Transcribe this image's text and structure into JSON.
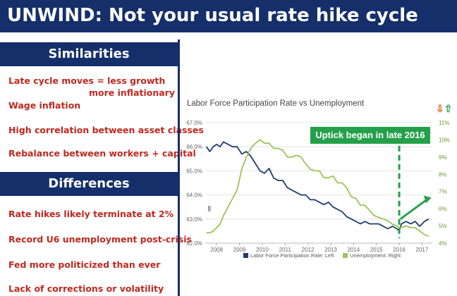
{
  "slide": {
    "title": "UNWIND: Not your usual rate hike cycle",
    "similarities": {
      "heading": "Similarities",
      "items": [
        "Late cycle moves = less growth",
        "more inflationary",
        "Wage inflation",
        "High correlation between asset classes",
        "Rebalance between workers + capital"
      ]
    },
    "differences": {
      "heading": "Differences",
      "items": [
        "Rate hikes likely terminate at 2%",
        "Record U6 unemployment post-crisis",
        "Fed more politicized than ever",
        "Lack of corrections or volatility"
      ]
    }
  },
  "colors": {
    "navy": "#152f6b",
    "red_text": "#c0281e",
    "participation_line": "#1f3d6d",
    "unemployment_line": "#9cc45a",
    "callout_green": "#24a04a",
    "arrow_green": "#2e9e4f",
    "arrow_orange": "#e0621c"
  },
  "chart_data": {
    "type": "line",
    "title": "Labor Force Participation Rate vs Unemployment",
    "annotation": "Uptick began in late 2016",
    "x_ticks": [
      "2008",
      "2009",
      "2010",
      "2011",
      "2012",
      "2013",
      "2014",
      "2015",
      "2016",
      "2017"
    ],
    "xlim": [
      2007.5,
      2017.45
    ],
    "y_left": {
      "ticks": [
        "67.0%",
        "66.0%",
        "65.0%",
        "64.0%",
        "63.0%",
        "62.0%"
      ],
      "ylim": [
        62.0,
        67.0
      ]
    },
    "y_right": {
      "ticks": [
        "11%",
        "10%",
        "9%",
        "8%",
        "7%",
        "6%",
        "5%",
        "4%"
      ],
      "ylim": [
        4,
        11
      ]
    },
    "series": [
      {
        "name": "Labor Force Participation Rate: Left",
        "axis": "left",
        "x": [
          2007.55,
          2007.7,
          2007.85,
          2008.0,
          2008.15,
          2008.3,
          2008.5,
          2008.7,
          2008.9,
          2009.1,
          2009.3,
          2009.5,
          2009.7,
          2009.9,
          2010.1,
          2010.3,
          2010.5,
          2010.7,
          2010.9,
          2011.1,
          2011.3,
          2011.5,
          2011.7,
          2011.9,
          2012.1,
          2012.3,
          2012.5,
          2012.7,
          2012.9,
          2013.1,
          2013.3,
          2013.5,
          2013.7,
          2013.9,
          2014.1,
          2014.3,
          2014.5,
          2014.7,
          2014.9,
          2015.1,
          2015.3,
          2015.5,
          2015.7,
          2015.9,
          2016.0,
          2016.1,
          2016.3,
          2016.5,
          2016.7,
          2016.9,
          2017.1,
          2017.3
        ],
        "values": [
          66.0,
          65.8,
          66.0,
          66.1,
          66.0,
          66.2,
          66.1,
          66.0,
          66.0,
          65.7,
          65.8,
          65.6,
          65.3,
          65.0,
          64.9,
          65.1,
          64.7,
          64.6,
          64.6,
          64.3,
          64.2,
          64.1,
          64.0,
          64.0,
          63.8,
          63.8,
          63.7,
          63.6,
          63.7,
          63.5,
          63.4,
          63.3,
          63.1,
          63.0,
          62.9,
          62.8,
          62.9,
          62.8,
          62.8,
          62.8,
          62.7,
          62.6,
          62.7,
          62.6,
          62.5,
          62.8,
          62.9,
          62.8,
          62.9,
          62.7,
          62.9,
          63.0
        ]
      },
      {
        "name": "Unemployment: Right",
        "axis": "right",
        "x": [
          2007.55,
          2007.7,
          2007.85,
          2008.0,
          2008.15,
          2008.3,
          2008.5,
          2008.7,
          2008.9,
          2009.1,
          2009.3,
          2009.5,
          2009.7,
          2009.9,
          2010.1,
          2010.3,
          2010.5,
          2010.7,
          2010.9,
          2011.1,
          2011.3,
          2011.5,
          2011.7,
          2011.9,
          2012.1,
          2012.3,
          2012.5,
          2012.7,
          2012.9,
          2013.1,
          2013.3,
          2013.5,
          2013.7,
          2013.9,
          2014.1,
          2014.3,
          2014.5,
          2014.7,
          2014.9,
          2015.1,
          2015.3,
          2015.5,
          2015.7,
          2015.9,
          2016.0,
          2016.1,
          2016.3,
          2016.5,
          2016.7,
          2016.9,
          2017.1,
          2017.3
        ],
        "values": [
          4.6,
          4.6,
          4.7,
          4.9,
          5.1,
          5.6,
          6.1,
          6.6,
          7.1,
          8.3,
          9.0,
          9.5,
          9.8,
          10.0,
          9.8,
          9.8,
          9.5,
          9.5,
          9.4,
          9.0,
          9.0,
          9.1,
          9.0,
          8.6,
          8.3,
          8.2,
          8.2,
          7.8,
          7.8,
          7.9,
          7.5,
          7.5,
          7.2,
          6.7,
          6.6,
          6.2,
          6.2,
          5.9,
          5.6,
          5.5,
          5.4,
          5.3,
          5.1,
          5.0,
          4.9,
          4.9,
          5.0,
          4.9,
          4.9,
          4.7,
          4.5,
          4.4
        ]
      }
    ],
    "legend": "bottom"
  }
}
